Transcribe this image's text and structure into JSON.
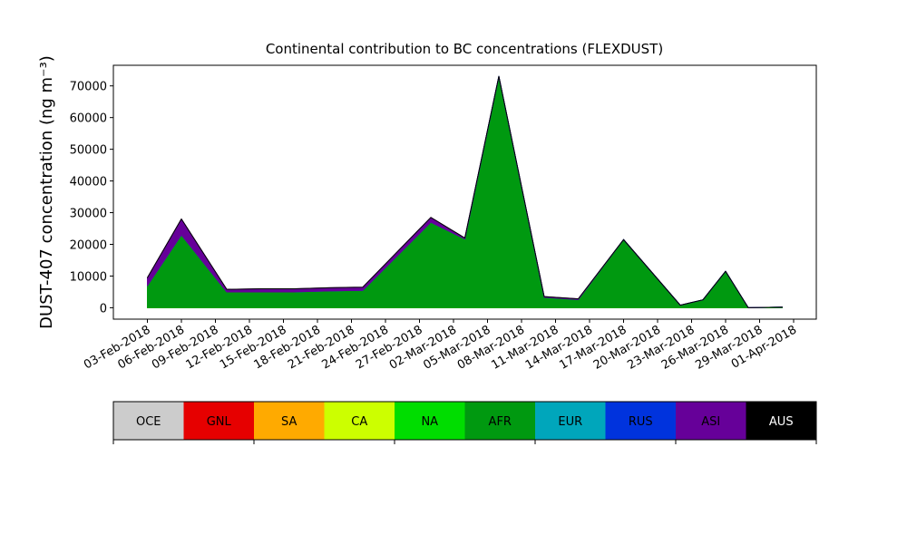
{
  "chart_data": {
    "type": "stacked_area",
    "title": "Continental contribution to BC concentrations (FLEXDUST)",
    "y_label": "DUST-407 concentration (ng m⁻³)",
    "x": [
      "2018-02-03",
      "2018-02-06",
      "2018-02-10",
      "2018-02-13",
      "2018-02-16",
      "2018-02-19",
      "2018-02-22",
      "2018-02-28",
      "2018-03-03",
      "2018-03-06",
      "2018-03-10",
      "2018-03-13",
      "2018-03-17",
      "2018-03-22",
      "2018-03-24",
      "2018-03-26",
      "2018-03-28",
      "2018-03-31"
    ],
    "xlim": [
      "2018-01-31",
      "2018-04-03"
    ],
    "xticks": [
      {
        "value": "2018-02-03",
        "label": "03-Feb-2018"
      },
      {
        "value": "2018-02-06",
        "label": "06-Feb-2018"
      },
      {
        "value": "2018-02-09",
        "label": "09-Feb-2018"
      },
      {
        "value": "2018-02-12",
        "label": "12-Feb-2018"
      },
      {
        "value": "2018-02-15",
        "label": "15-Feb-2018"
      },
      {
        "value": "2018-02-18",
        "label": "18-Feb-2018"
      },
      {
        "value": "2018-02-21",
        "label": "21-Feb-2018"
      },
      {
        "value": "2018-02-24",
        "label": "24-Feb-2018"
      },
      {
        "value": "2018-02-27",
        "label": "27-Feb-2018"
      },
      {
        "value": "2018-03-02",
        "label": "02-Mar-2018"
      },
      {
        "value": "2018-03-05",
        "label": "05-Mar-2018"
      },
      {
        "value": "2018-03-08",
        "label": "08-Mar-2018"
      },
      {
        "value": "2018-03-11",
        "label": "11-Mar-2018"
      },
      {
        "value": "2018-03-14",
        "label": "14-Mar-2018"
      },
      {
        "value": "2018-03-17",
        "label": "17-Mar-2018"
      },
      {
        "value": "2018-03-20",
        "label": "20-Mar-2018"
      },
      {
        "value": "2018-03-23",
        "label": "23-Mar-2018"
      },
      {
        "value": "2018-03-26",
        "label": "26-Mar-2018"
      },
      {
        "value": "2018-03-29",
        "label": "29-Mar-2018"
      },
      {
        "value": "2018-04-01",
        "label": "01-Apr-2018"
      }
    ],
    "ylim": [
      -3600,
      76500
    ],
    "yticks": [
      0,
      10000,
      20000,
      30000,
      40000,
      50000,
      60000,
      70000
    ],
    "series": [
      {
        "name": "OCE",
        "color": "#cccccc",
        "values": [
          0,
          0,
          0,
          0,
          0,
          0,
          0,
          0,
          0,
          0,
          0,
          0,
          0,
          0,
          0,
          0,
          0,
          0
        ]
      },
      {
        "name": "GNL",
        "color": "#e60000",
        "values": [
          0,
          0,
          0,
          0,
          0,
          0,
          0,
          0,
          0,
          0,
          0,
          0,
          0,
          0,
          0,
          0,
          0,
          0
        ]
      },
      {
        "name": "SA",
        "color": "#ffaa00",
        "values": [
          0,
          0,
          0,
          0,
          0,
          0,
          0,
          0,
          0,
          0,
          0,
          0,
          0,
          0,
          0,
          0,
          0,
          0
        ]
      },
      {
        "name": "CA",
        "color": "#ccff00",
        "values": [
          0,
          0,
          0,
          0,
          0,
          0,
          0,
          0,
          0,
          0,
          0,
          0,
          0,
          0,
          0,
          0,
          0,
          0
        ]
      },
      {
        "name": "NA",
        "color": "#00dd00",
        "values": [
          0,
          0,
          0,
          0,
          0,
          0,
          0,
          0,
          0,
          0,
          0,
          0,
          0,
          0,
          0,
          0,
          0,
          0
        ]
      },
      {
        "name": "AFR",
        "color": "#009910",
        "values": [
          7000,
          23000,
          5000,
          5000,
          5000,
          5300,
          5500,
          27000,
          21700,
          73000,
          3300,
          2600,
          21500,
          800,
          2500,
          11500,
          0,
          200
        ]
      },
      {
        "name": "EUR",
        "color": "#00a6bb",
        "values": [
          0,
          0,
          0,
          0,
          0,
          0,
          0,
          0,
          0,
          0,
          0,
          0,
          0,
          0,
          0,
          0,
          0,
          0
        ]
      },
      {
        "name": "RUS",
        "color": "#0033dd",
        "values": [
          0,
          0,
          0,
          0,
          0,
          0,
          0,
          0,
          0,
          0,
          0,
          0,
          0,
          0,
          0,
          0,
          0,
          0
        ]
      },
      {
        "name": "ASI",
        "color": "#660099",
        "values": [
          2500,
          5000,
          800,
          1000,
          1000,
          1000,
          1000,
          1500,
          300,
          0,
          200,
          200,
          0,
          0,
          0,
          0,
          0,
          0
        ]
      },
      {
        "name": "AUS",
        "color": "#000000",
        "values": [
          0,
          0,
          0,
          0,
          0,
          0,
          0,
          0,
          0,
          0,
          0,
          0,
          0,
          0,
          0,
          0,
          0,
          0
        ]
      }
    ]
  }
}
